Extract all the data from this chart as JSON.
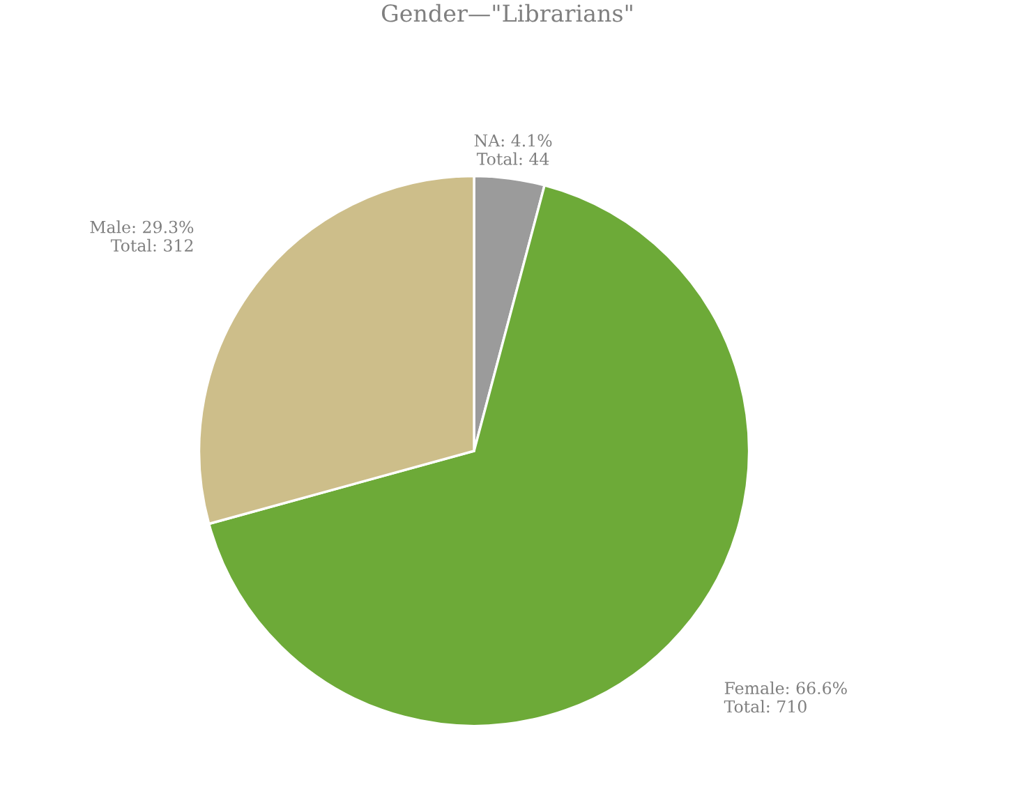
{
  "chart_data": {
    "type": "pie",
    "title": "Gender—\"Librarians\"",
    "categories": [
      "NA",
      "Female",
      "Male"
    ],
    "values": [
      44,
      710,
      312
    ],
    "colors": [
      "#9b9b9b",
      "#6daa38",
      "#cdbe8a"
    ],
    "value_labels": [
      "4.1%\nTotal: 44",
      "66.6%\nTotal: 710",
      "29.3%\nTotal: 312"
    ]
  }
}
